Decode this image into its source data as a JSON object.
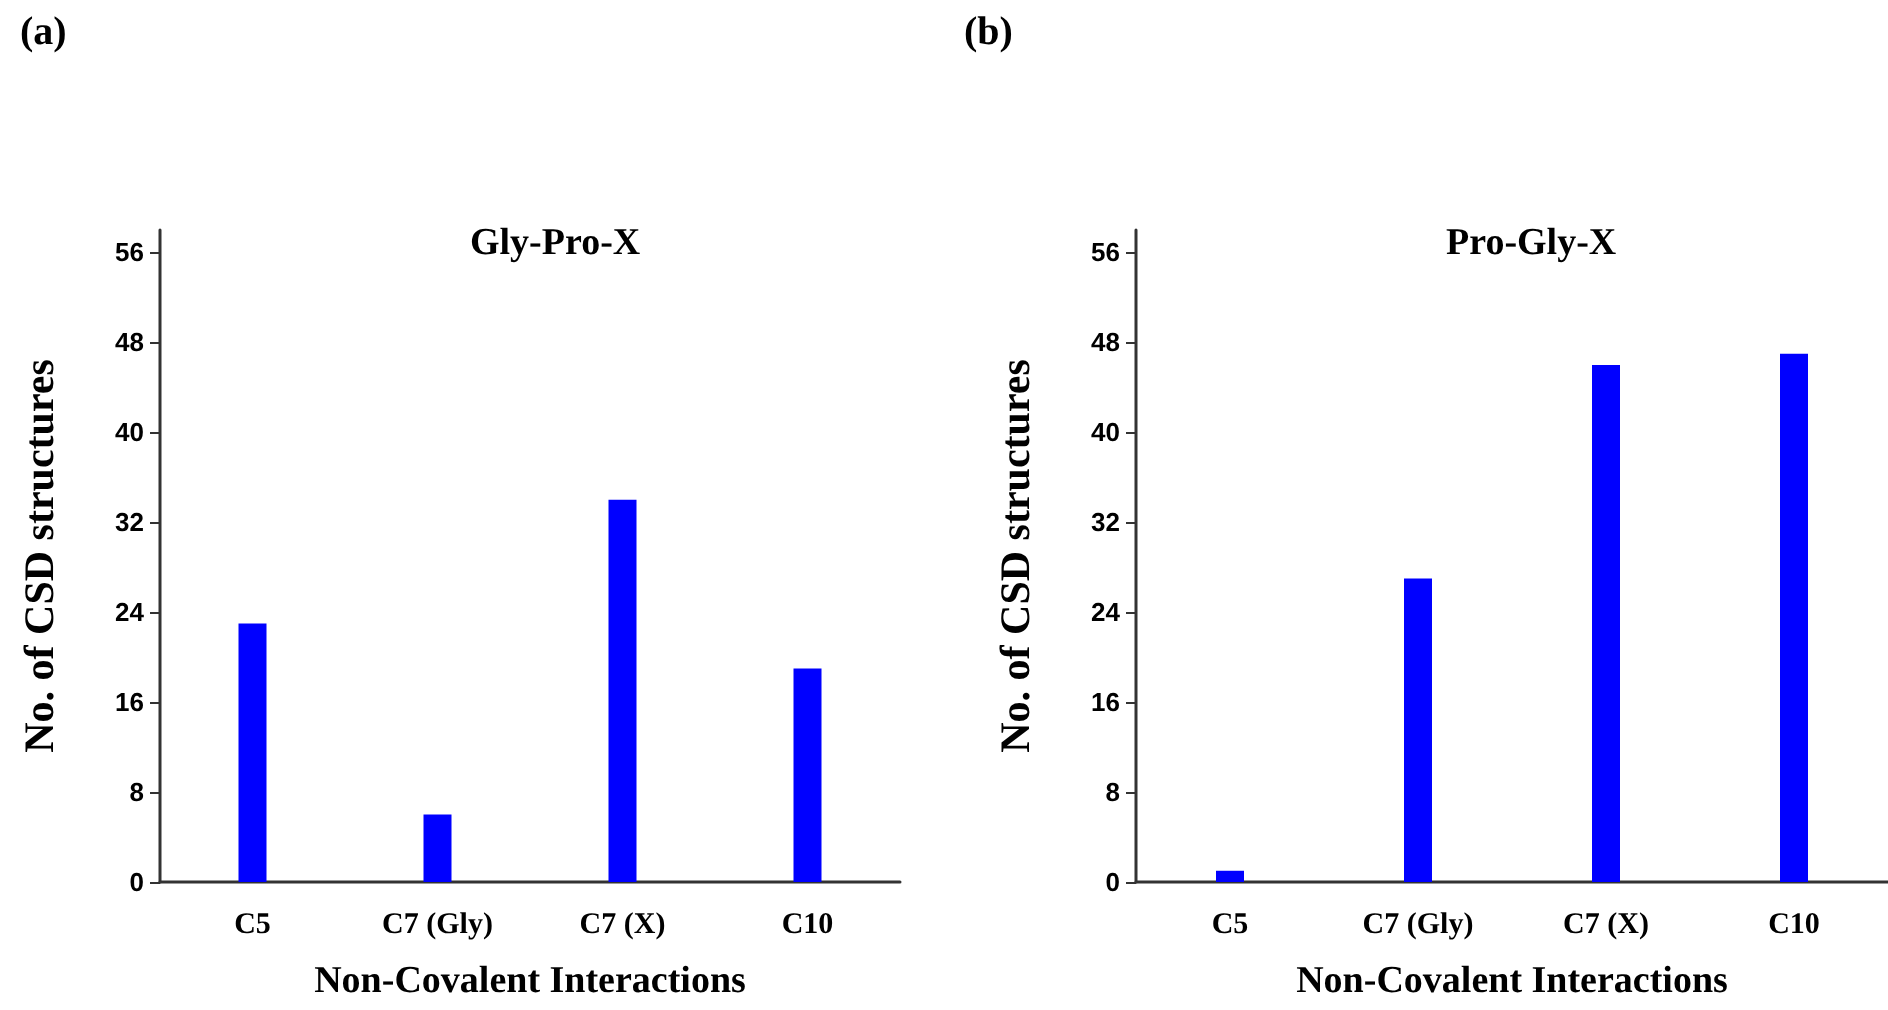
{
  "chart_data": [
    {
      "type": "bar",
      "title": "Gly-Pro-X",
      "xlabel": "Non-Covalent Interactions",
      "ylabel": "No. of CSD structures",
      "annotations": [
        "(a)"
      ],
      "categories": [
        "C5",
        "C7 (Gly)",
        "C7 (X)",
        "C10"
      ],
      "values": [
        23,
        6,
        34,
        19
      ],
      "color": "#0000ff",
      "ylim": [
        0,
        58
      ],
      "yticks": [
        0,
        8,
        16,
        24,
        32,
        40,
        48,
        56
      ],
      "grid": false
    },
    {
      "type": "bar",
      "title": "Pro-Gly-X",
      "xlabel": "Non-Covalent Interactions",
      "ylabel": "No. of CSD structures",
      "annotations": [
        "(b)"
      ],
      "categories": [
        "C5",
        "C7 (Gly)",
        "C7 (X)",
        "C10"
      ],
      "values": [
        1,
        27,
        46,
        47
      ],
      "color": "#0000ff",
      "ylim": [
        0,
        58
      ],
      "yticks": [
        0,
        8,
        16,
        24,
        32,
        40,
        48,
        56
      ],
      "grid": false
    }
  ]
}
